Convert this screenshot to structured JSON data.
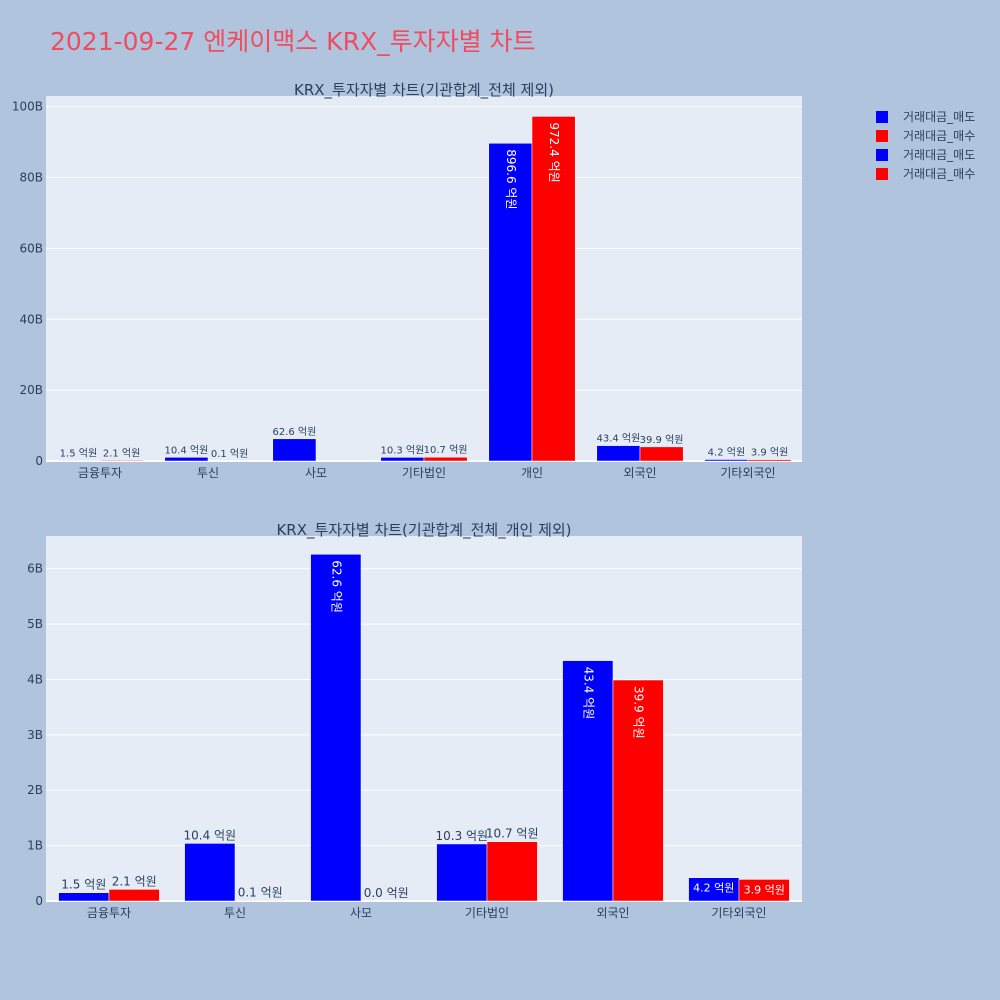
{
  "page": {
    "title": "2021-09-27 엔케이맥스 KRX_투자자별 차트"
  },
  "colors": {
    "sell": "#0000ff",
    "buy": "#ff0000",
    "plot_bg": "#e5ecf6",
    "text": "#2a3f5f"
  },
  "legend": {
    "items": [
      {
        "label": "거래대금_매도",
        "color": "#0000ff"
      },
      {
        "label": "거래대금_매수",
        "color": "#ff0000"
      },
      {
        "label": "거래대금_매도",
        "color": "#0000ff"
      },
      {
        "label": "거래대금_매수",
        "color": "#ff0000"
      }
    ]
  },
  "chart_data": [
    {
      "type": "bar",
      "title": "KRX_투자자별 차트(기관합계_전체 제외)",
      "categories": [
        "금융투자",
        "투신",
        "사모",
        "기타법인",
        "개인",
        "외국인",
        "기타외국인"
      ],
      "series": [
        {
          "name": "거래대금_매도",
          "values": [
            150000000,
            1040000000,
            6260000000,
            1030000000,
            89660000000,
            4340000000,
            420000000
          ],
          "labels": [
            "1.5 억원",
            "10.4 억원",
            "62.6 억원",
            "10.3 억원",
            "896.6 억원",
            "43.4 억원",
            "4.2 억원"
          ]
        },
        {
          "name": "거래대금_매수",
          "values": [
            210000000,
            10000000,
            0,
            1070000000,
            97240000000,
            3990000000,
            390000000
          ],
          "labels": [
            "2.1 억원",
            "0.1 억원",
            "",
            "10.7 억원",
            "972.4 억원",
            "39.9 억원",
            "3.9 억원"
          ]
        }
      ],
      "ylim": [
        0,
        103000000000
      ],
      "yticks": [
        0,
        20000000000,
        40000000000,
        60000000000,
        80000000000,
        100000000000
      ],
      "ytick_labels": [
        "0",
        "20B",
        "40B",
        "60B",
        "80B",
        "100B"
      ],
      "grid": true
    },
    {
      "type": "bar",
      "title": "KRX_투자자별 차트(기관합계_전체_개인 제외)",
      "categories": [
        "금융투자",
        "투신",
        "사모",
        "기타법인",
        "외국인",
        "기타외국인"
      ],
      "series": [
        {
          "name": "거래대금_매도",
          "values": [
            150000000,
            1040000000,
            6260000000,
            1030000000,
            4340000000,
            420000000
          ],
          "labels": [
            "1.5 억원",
            "10.4 억원",
            "62.6 억원",
            "10.3 억원",
            "43.4 억원",
            "4.2 억원"
          ]
        },
        {
          "name": "거래대금_매수",
          "values": [
            210000000,
            10000000,
            0,
            1070000000,
            3990000000,
            390000000
          ],
          "labels": [
            "2.1 억원",
            "0.1 억원",
            "0.0 억원",
            "10.7 억원",
            "39.9 억원",
            "3.9 억원"
          ]
        }
      ],
      "ylim": [
        0,
        6590000000
      ],
      "yticks": [
        0,
        1000000000,
        2000000000,
        3000000000,
        4000000000,
        5000000000,
        6000000000
      ],
      "ytick_labels": [
        "0",
        "1B",
        "2B",
        "3B",
        "4B",
        "5B",
        "6B"
      ],
      "grid": true
    }
  ]
}
